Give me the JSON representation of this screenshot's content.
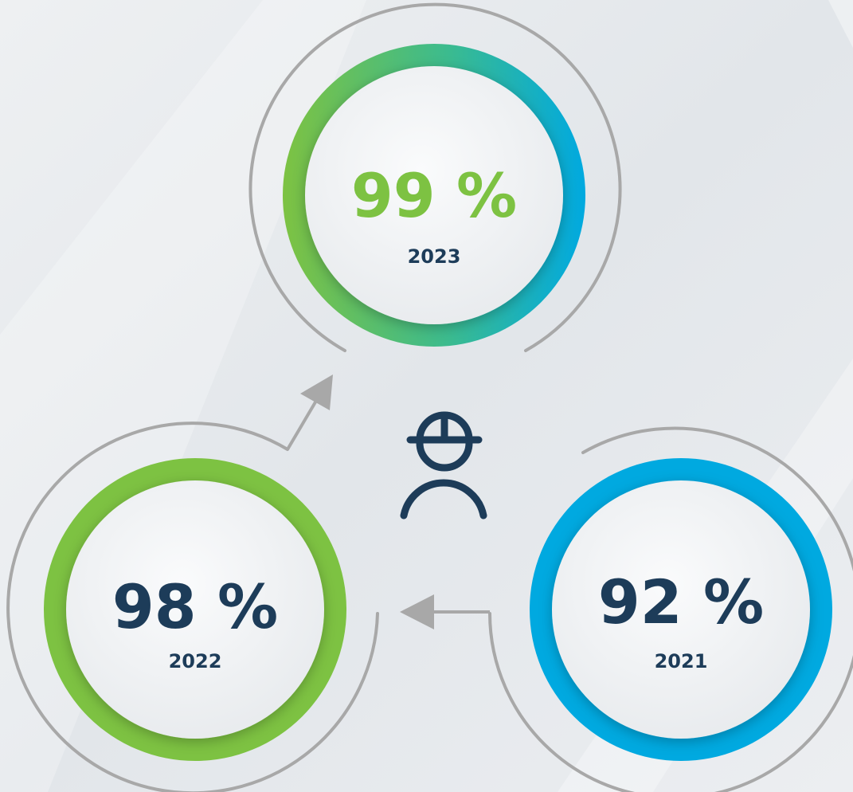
{
  "nodes": [
    {
      "value": "99 %",
      "year": "2023"
    },
    {
      "value": "98 %",
      "year": "2022"
    },
    {
      "value": "92 %",
      "year": "2021"
    }
  ]
}
